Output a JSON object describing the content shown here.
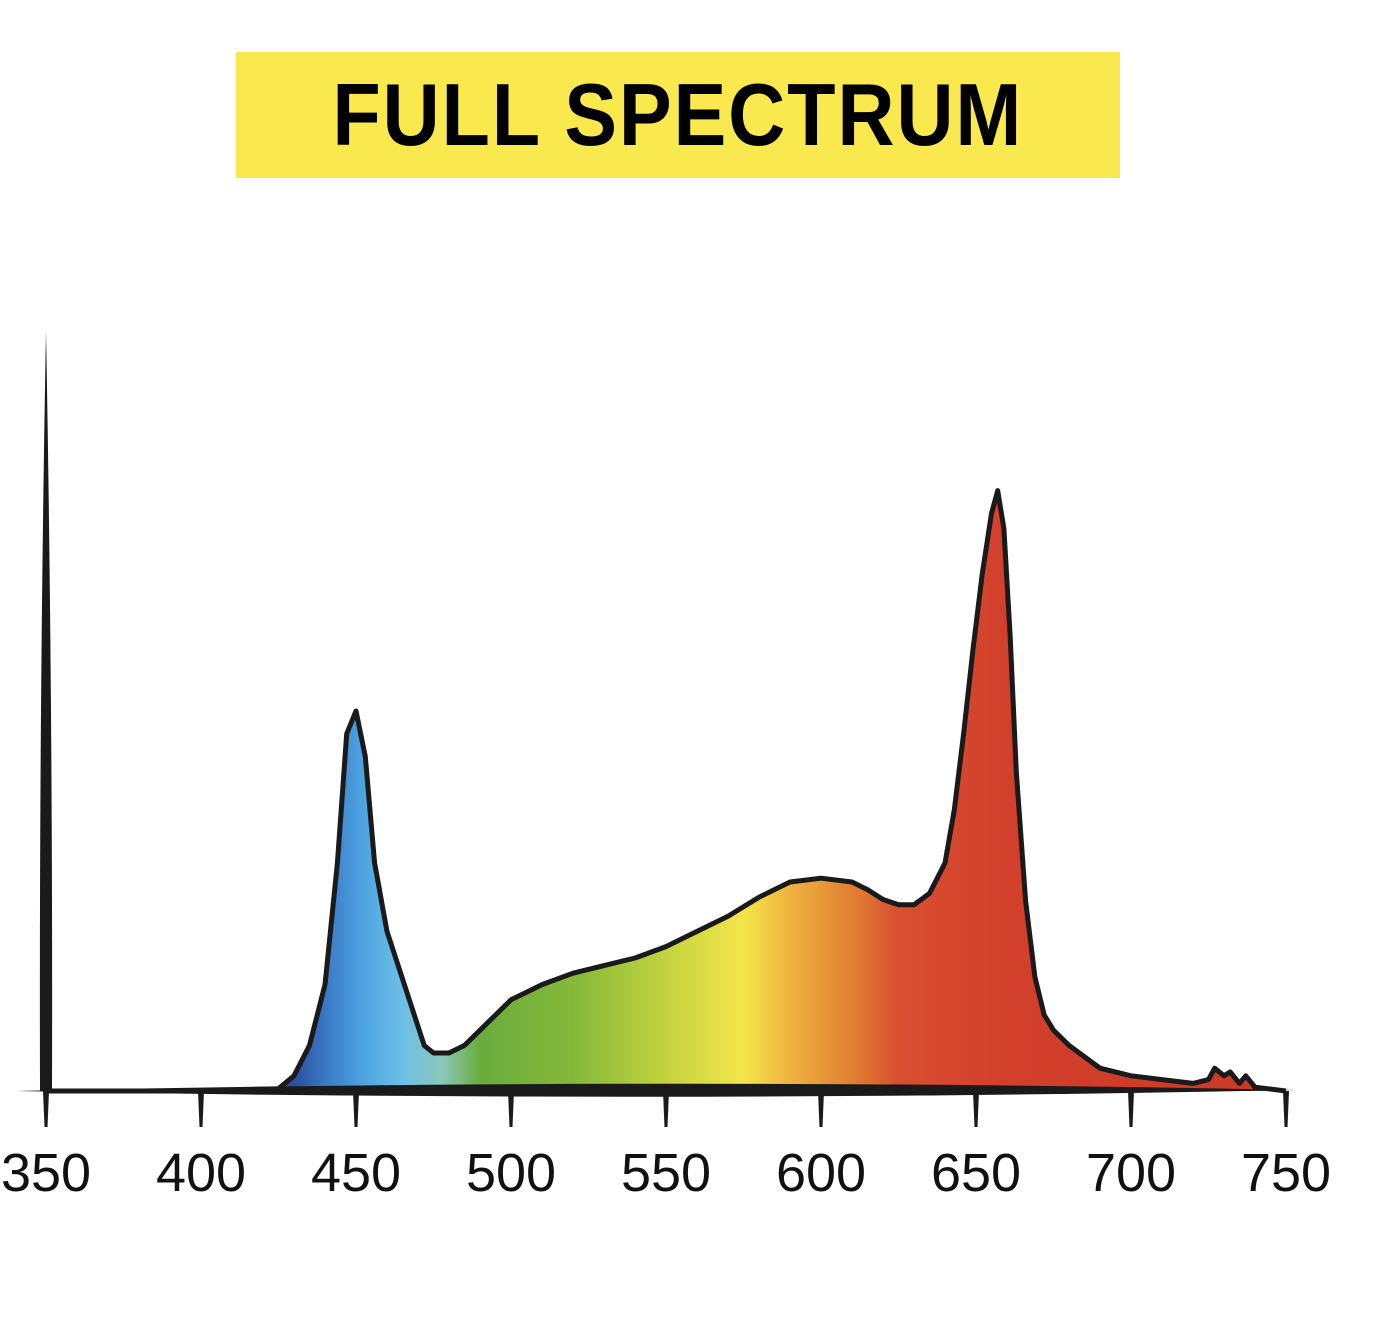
{
  "chart_data": {
    "type": "area",
    "title": "FULL SPECTRUM",
    "xlabel": "",
    "ylabel": "",
    "xlim": [
      350,
      750
    ],
    "ylim": [
      0,
      1.0
    ],
    "grid": false,
    "x_ticks": [
      "350",
      "400",
      "450",
      "500",
      "550",
      "600",
      "650",
      "700",
      "750"
    ],
    "series": [
      {
        "x": [
          350,
          400,
          425,
          430,
          435,
          440,
          444,
          447,
          450,
          453,
          456,
          460,
          464,
          468,
          472,
          475,
          480,
          485,
          490,
          495,
          500,
          505,
          510,
          520,
          530,
          540,
          550,
          560,
          570,
          580,
          590,
          600,
          610,
          615,
          620,
          625,
          630,
          635,
          640,
          643,
          646,
          649,
          652,
          655,
          657,
          659,
          661,
          663,
          666,
          669,
          672,
          675,
          680,
          685,
          690,
          700,
          710,
          720,
          725,
          727,
          730,
          732,
          735,
          737,
          740,
          750
        ],
        "y": [
          0,
          0,
          0.003,
          0.02,
          0.06,
          0.14,
          0.3,
          0.47,
          0.5,
          0.44,
          0.3,
          0.21,
          0.16,
          0.11,
          0.06,
          0.05,
          0.05,
          0.06,
          0.08,
          0.1,
          0.12,
          0.13,
          0.14,
          0.155,
          0.165,
          0.175,
          0.19,
          0.21,
          0.23,
          0.255,
          0.275,
          0.28,
          0.275,
          0.265,
          0.252,
          0.245,
          0.245,
          0.26,
          0.3,
          0.37,
          0.47,
          0.58,
          0.68,
          0.76,
          0.79,
          0.74,
          0.6,
          0.42,
          0.25,
          0.15,
          0.1,
          0.08,
          0.06,
          0.045,
          0.03,
          0.02,
          0.015,
          0.01,
          0.015,
          0.03,
          0.02,
          0.025,
          0.01,
          0.02,
          0.005,
          0
        ]
      }
    ],
    "colors": {
      "banner": "#f9e84e",
      "axis": "#1a1a1a",
      "gradient": [
        {
          "wavelength": 430,
          "color": "#2a4f9e"
        },
        {
          "wavelength": 440,
          "color": "#3a78c4"
        },
        {
          "wavelength": 452,
          "color": "#4da3e0"
        },
        {
          "wavelength": 465,
          "color": "#6cc0e6"
        },
        {
          "wavelength": 478,
          "color": "#8cc7b8"
        },
        {
          "wavelength": 490,
          "color": "#69ac3c"
        },
        {
          "wavelength": 520,
          "color": "#85b83a"
        },
        {
          "wavelength": 545,
          "color": "#b9cf3d"
        },
        {
          "wavelength": 575,
          "color": "#f3e64a"
        },
        {
          "wavelength": 590,
          "color": "#efb340"
        },
        {
          "wavelength": 612,
          "color": "#df7a30"
        },
        {
          "wavelength": 625,
          "color": "#d94f30"
        },
        {
          "wavelength": 660,
          "color": "#d2402c"
        },
        {
          "wavelength": 740,
          "color": "#cc3a28"
        }
      ]
    }
  }
}
